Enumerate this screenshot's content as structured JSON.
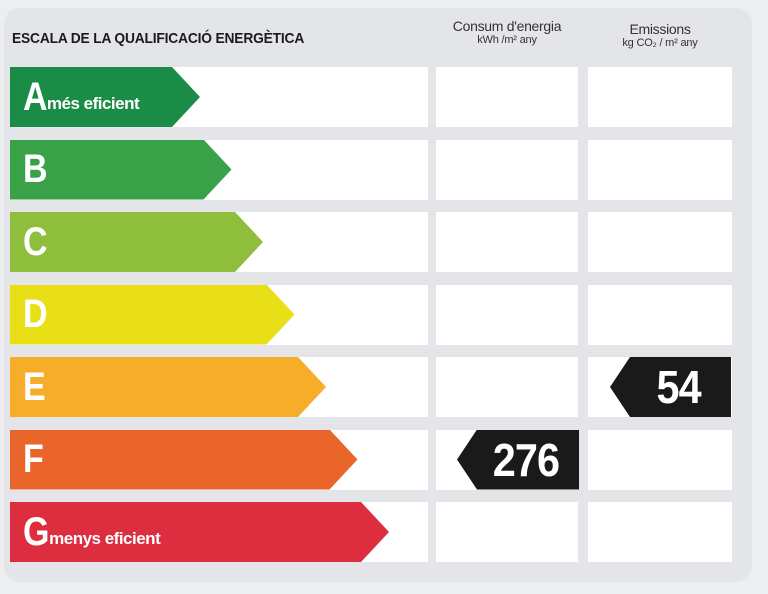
{
  "title": "ESCALA DE LA QUALIFICACIÓ ENERGÈTICA",
  "columns": {
    "consum": {
      "line1": "Consum d'energia",
      "line2": "kWh /m² any"
    },
    "emissions": {
      "line1": "Emissions",
      "line2": "kg CO₂ / m² any"
    }
  },
  "classes": [
    {
      "letter": "A",
      "label": "més eficient",
      "color": "#1b8c45"
    },
    {
      "letter": "B",
      "label": "",
      "color": "#39a147"
    },
    {
      "letter": "C",
      "label": "",
      "color": "#8fbd3c"
    },
    {
      "letter": "D",
      "label": "",
      "color": "#e9df16"
    },
    {
      "letter": "E",
      "label": "",
      "color": "#f5ad2a"
    },
    {
      "letter": "F",
      "label": "",
      "color": "#e9652a"
    },
    {
      "letter": "G",
      "label": "menys eficient",
      "color": "#dc2e3f"
    }
  ],
  "ratings": {
    "consum": {
      "class": "F",
      "value": "276"
    },
    "emissions": {
      "class": "E",
      "value": "54"
    }
  }
}
